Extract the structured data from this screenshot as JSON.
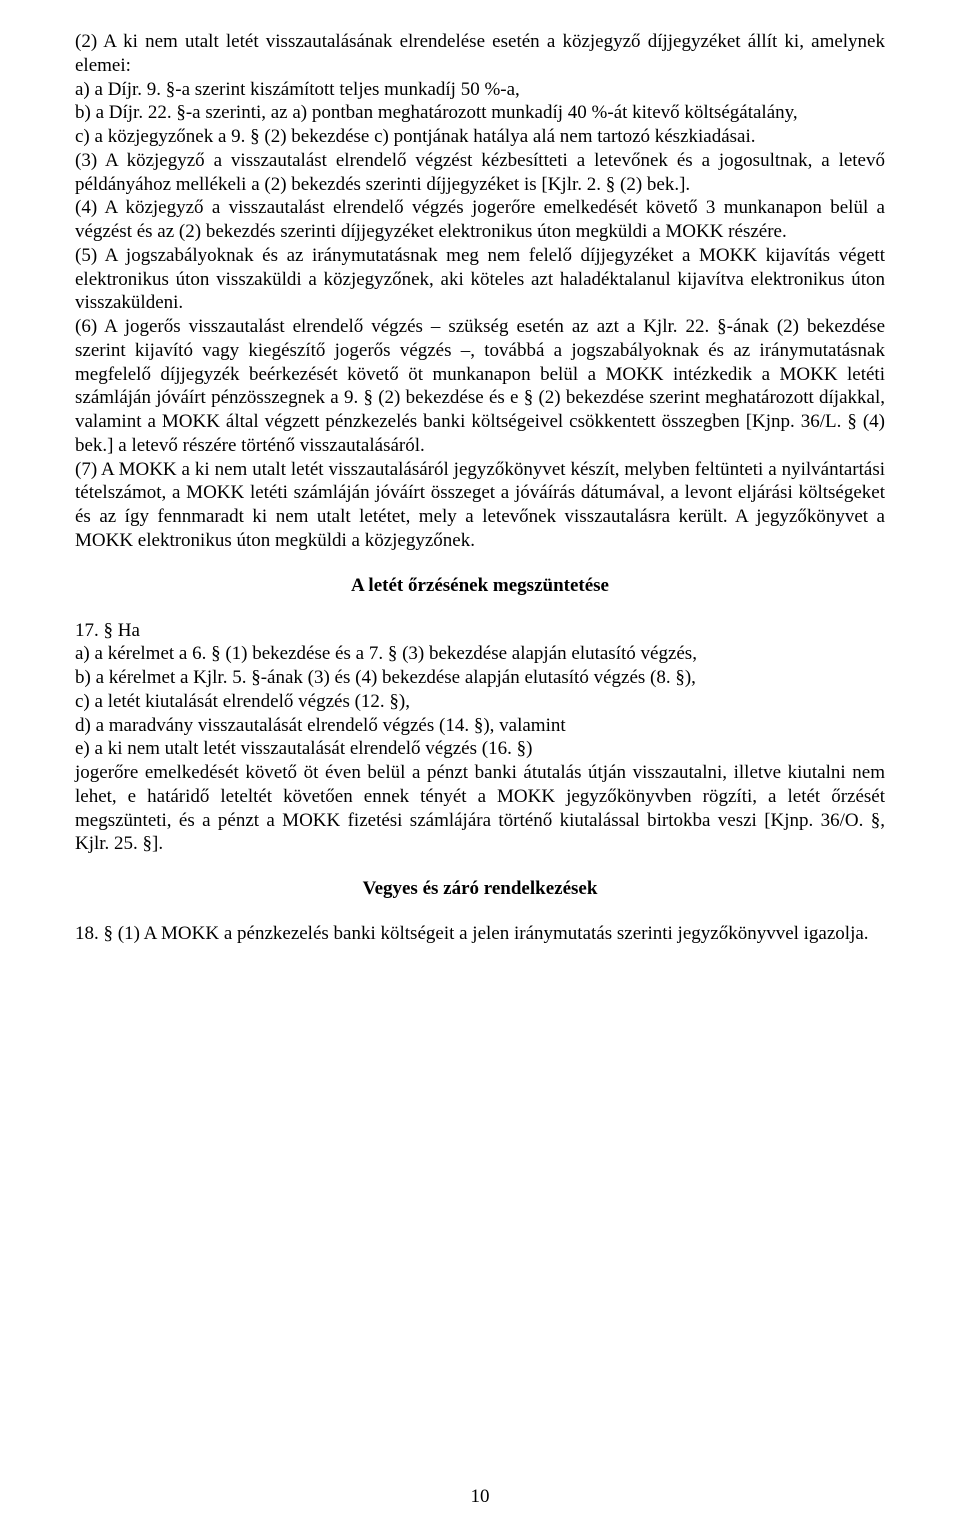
{
  "p1": "(2) A ki nem utalt letét visszautalásának elrendelése esetén a közjegyző díjjegyzéket állít ki, amelynek elemei:",
  "p1a": "a) a Díjr. 9. §-a szerint kiszámított teljes munkadíj 50 %-a,",
  "p1b": "b) a Díjr. 22. §-a szerinti, az a) pontban meghatározott munkadíj 40 %-át kitevő költségátalány,",
  "p1c": "c) a közjegyzőnek a 9. § (2) bekezdése c) pontjának hatálya alá nem tartozó készkiadásai.",
  "p2": "(3) A közjegyző a visszautalást elrendelő végzést kézbesítteti a letevőnek és a jogosultnak, a letevő példányához mellékeli a (2) bekezdés szerinti díjjegyzéket is [Kjlr. 2. § (2) bek.].",
  "p3": "(4) A közjegyző a visszautalást elrendelő végzés jogerőre emelkedését követő 3 munkanapon belül a végzést és az (2) bekezdés szerinti díjjegyzéket elektronikus úton megküldi a MOKK részére.",
  "p4": "(5) A jogszabályoknak és az iránymutatásnak meg nem felelő díjjegyzéket a MOKK kijavítás végett elektronikus úton visszaküldi a közjegyzőnek, aki köteles azt haladéktalanul kijavítva elektronikus úton visszaküldeni.",
  "p5": "(6) A jogerős visszautalást elrendelő végzés – szükség esetén az azt a Kjlr. 22. §-ának (2) bekezdése szerint kijavító vagy kiegészítő jogerős végzés –, továbbá a jogszabályoknak és az iránymutatásnak megfelelő díjjegyzék beérkezését követő öt munkanapon belül a MOKK intézkedik a MOKK letéti számláján jóváírt pénzösszegnek a 9. § (2) bekezdése és e § (2) bekezdése szerint meghatározott díjakkal, valamint a MOKK által végzett pénzkezelés banki költségeivel csökkentett összegben [Kjnp. 36/L. § (4) bek.] a letevő részére történő visszautalásáról.",
  "p6": "(7) A MOKK a ki nem utalt letét visszautalásáról jegyzőkönyvet készít, melyben feltünteti a nyilvántartási tételszámot, a MOKK letéti számláján jóváírt összeget a jóváírás dátumával, a levont eljárási költségeket és az így fennmaradt ki nem utalt letétet, mely a letevőnek visszautalásra került. A jegyzőkönyvet a MOKK elektronikus úton megküldi a közjegyzőnek.",
  "h1": "A letét őrzésének megszüntetése",
  "p7": "17. § Ha",
  "p7a": "a) a kérelmet a 6. § (1) bekezdése és a 7. § (3) bekezdése alapján elutasító végzés,",
  "p7b": "b) a kérelmet a Kjlr. 5. §-ának (3) és (4) bekezdése alapján elutasító végzés (8. §),",
  "p7c": "c) a letét kiutalását elrendelő végzés (12. §),",
  "p7d": "d) a maradvány visszautalását elrendelő végzés (14. §), valamint",
  "p7e": "e) a ki nem utalt letét visszautalását elrendelő végzés (16. §)",
  "p8": "jogerőre emelkedését követő öt éven belül a pénzt banki átutalás útján visszautalni, illetve kiutalni nem lehet, e határidő leteltét követően ennek tényét a MOKK jegyzőkönyvben rögzíti, a letét őrzését megszünteti, és a pénzt a MOKK fizetési számlájára történő kiutalással birtokba veszi [Kjnp. 36/O. §, Kjlr. 25. §].",
  "h2": "Vegyes és záró rendelkezések",
  "p9": "18. § (1) A MOKK a pénzkezelés banki költségeit a jelen iránymutatás szerinti jegyzőkönyvvel igazolja.",
  "pageNumber": "10"
}
